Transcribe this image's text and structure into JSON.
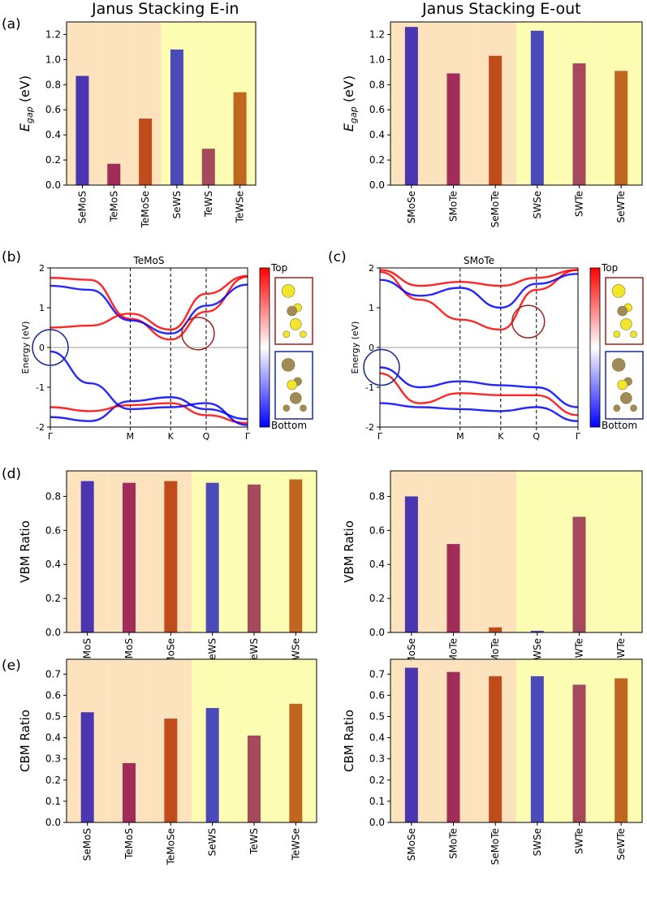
{
  "titles": {
    "left": "Janus Stacking E-in",
    "right": "Janus Stacking E-out"
  },
  "panel_labels": {
    "a": "(a)",
    "b": "(b)",
    "c": "(c)",
    "d": "(d)",
    "e": "(e)"
  },
  "colors": {
    "region1": "#fde3bd",
    "region2": "#fdfcb3",
    "bar_purple": "#4a36b0",
    "bar_crimson": "#a22c59",
    "bar_rust": "#c04b1b",
    "bar_blue": "#4a4ab8",
    "bar_rose": "#a44a5c",
    "bar_orange": "#bf6620",
    "band_top": "#ff0000",
    "band_bottom": "#0000ff",
    "circle_blue": "#1a2a9c",
    "circle_red": "#9c2020"
  },
  "chart_data": [
    {
      "id": "a-left",
      "type": "bar",
      "title": "Janus Stacking E-in",
      "categories": [
        "SeMoS",
        "TeMoS",
        "TeMoSe",
        "SeWS",
        "TeWS",
        "TeWSe"
      ],
      "values": [
        0.87,
        0.17,
        0.53,
        1.08,
        0.29,
        0.74
      ],
      "ylabel": "E_gap (eV)",
      "ylim": [
        0,
        1.3
      ],
      "yticks": [
        "0.0",
        "0.2",
        "0.4",
        "0.6",
        "0.8",
        "1.0",
        "1.2"
      ],
      "colors": [
        "bar_purple",
        "bar_crimson",
        "bar_rust",
        "bar_blue",
        "bar_rose",
        "bar_orange"
      ],
      "shading": [
        "region1",
        "region1",
        "region1",
        "region2",
        "region2",
        "region2"
      ]
    },
    {
      "id": "a-right",
      "type": "bar",
      "title": "Janus Stacking E-out",
      "categories": [
        "SMoSe",
        "SMoTe",
        "SeMoTe",
        "SWSe",
        "SWTe",
        "SeWTe"
      ],
      "values": [
        1.26,
        0.89,
        1.03,
        1.23,
        0.97,
        0.91
      ],
      "ylabel": "E_gap (eV)",
      "ylim": [
        0,
        1.3
      ],
      "yticks": [
        "0.0",
        "0.2",
        "0.4",
        "0.6",
        "0.8",
        "1.0",
        "1.2"
      ],
      "colors": [
        "bar_purple",
        "bar_crimson",
        "bar_rust",
        "bar_blue",
        "bar_rose",
        "bar_orange"
      ],
      "shading": [
        "region1",
        "region1",
        "region1",
        "region2",
        "region2",
        "region2"
      ]
    },
    {
      "id": "b",
      "type": "line",
      "title": "TeMoS",
      "xticklabels": [
        "Γ",
        "M",
        "K",
        "Q",
        "Γ"
      ],
      "ylabel": "Energy (eV)",
      "ylim": [
        -2,
        2
      ],
      "yticks": [
        "-2",
        "-1",
        "0",
        "1",
        "2"
      ],
      "colorbar": {
        "top": "Top",
        "bottom": "Bottom"
      },
      "series": [
        {
          "values": [
            1.75,
            1.7,
            0.72,
            0.2,
            0.9,
            1.78
          ]
        },
        {
          "values": [
            1.55,
            1.45,
            0.68,
            0.35,
            1.05,
            1.58
          ]
        },
        {
          "values": [
            0.5,
            0.55,
            0.85,
            0.45,
            1.35,
            1.8
          ]
        },
        {
          "values": [
            -1.75,
            -1.85,
            -1.35,
            -1.25,
            -1.55,
            -1.8
          ]
        },
        {
          "values": [
            -1.5,
            -1.6,
            -1.45,
            -1.4,
            -1.7,
            -1.9
          ]
        },
        {
          "values": [
            -0.1,
            -0.9,
            -1.55,
            -1.5,
            -1.4,
            -1.95
          ]
        }
      ]
    },
    {
      "id": "c",
      "type": "line",
      "title": "SMoTe",
      "xticklabels": [
        "Γ",
        "M",
        "K",
        "Q",
        "Γ"
      ],
      "ylabel": "Energy (eV)",
      "ylim": [
        -2,
        2
      ],
      "yticks": [
        "-2",
        "-1",
        "0",
        "1",
        "2"
      ],
      "colorbar": {
        "top": "Top",
        "bottom": "Bottom"
      },
      "series": [
        {
          "values": [
            1.9,
            1.2,
            0.7,
            0.45,
            1.45,
            1.95
          ]
        },
        {
          "values": [
            1.7,
            1.3,
            1.5,
            1.0,
            1.6,
            1.85
          ]
        },
        {
          "values": [
            1.95,
            1.55,
            1.65,
            1.55,
            1.75,
            1.95
          ]
        },
        {
          "values": [
            -0.5,
            -1.0,
            -0.85,
            -0.95,
            -1.0,
            -1.5
          ]
        },
        {
          "values": [
            -0.65,
            -1.4,
            -1.15,
            -1.2,
            -1.2,
            -1.7
          ]
        },
        {
          "values": [
            -1.4,
            -1.5,
            -1.55,
            -1.6,
            -1.5,
            -1.85
          ]
        }
      ]
    },
    {
      "id": "d-left",
      "type": "bar",
      "categories": [
        "SeMoS",
        "TeMoS",
        "TeMoSe",
        "SeWS",
        "TeWS",
        "TeWSe"
      ],
      "values": [
        0.89,
        0.88,
        0.89,
        0.88,
        0.87,
        0.9
      ],
      "ylabel": "VBM Ratio",
      "ylim": [
        0,
        0.95
      ],
      "yticks": [
        "0.0",
        "0.2",
        "0.4",
        "0.6",
        "0.8"
      ],
      "colors": [
        "bar_purple",
        "bar_crimson",
        "bar_rust",
        "bar_blue",
        "bar_rose",
        "bar_orange"
      ],
      "shading": [
        "region1",
        "region1",
        "region1",
        "region2",
        "region2",
        "region2"
      ]
    },
    {
      "id": "d-right",
      "type": "bar",
      "categories": [
        "SMoSe",
        "SMoTe",
        "SeMoTe",
        "SWSe",
        "SWTe",
        "SeWTe"
      ],
      "values": [
        0.8,
        0.52,
        0.03,
        0.01,
        0.68,
        0.0
      ],
      "ylabel": "VBM Ratio",
      "ylim": [
        0,
        0.95
      ],
      "yticks": [
        "0.0",
        "0.2",
        "0.4",
        "0.6",
        "0.8"
      ],
      "colors": [
        "bar_purple",
        "bar_crimson",
        "bar_rust",
        "bar_blue",
        "bar_rose",
        "bar_orange"
      ],
      "shading": [
        "region1",
        "region1",
        "region1",
        "region2",
        "region2",
        "region2"
      ]
    },
    {
      "id": "e-left",
      "type": "bar",
      "categories": [
        "SeMoS",
        "TeMoS",
        "TeMoSe",
        "SeWS",
        "TeWS",
        "TeWSe"
      ],
      "values": [
        0.52,
        0.28,
        0.49,
        0.54,
        0.41,
        0.56
      ],
      "ylabel": "CBM Ratio",
      "ylim": [
        0,
        0.77
      ],
      "yticks": [
        "0.0",
        "0.1",
        "0.2",
        "0.3",
        "0.4",
        "0.5",
        "0.6",
        "0.7"
      ],
      "colors": [
        "bar_purple",
        "bar_crimson",
        "bar_rust",
        "bar_blue",
        "bar_rose",
        "bar_orange"
      ],
      "shading": [
        "region1",
        "region1",
        "region1",
        "region2",
        "region2",
        "region2"
      ]
    },
    {
      "id": "e-right",
      "type": "bar",
      "categories": [
        "SMoSe",
        "SMoTe",
        "SeMoTe",
        "SWSe",
        "SWTe",
        "SeWTe"
      ],
      "values": [
        0.73,
        0.71,
        0.69,
        0.69,
        0.65,
        0.68
      ],
      "ylabel": "CBM Ratio",
      "ylim": [
        0,
        0.77
      ],
      "yticks": [
        "0.0",
        "0.1",
        "0.2",
        "0.3",
        "0.4",
        "0.5",
        "0.6",
        "0.7"
      ],
      "colors": [
        "bar_purple",
        "bar_crimson",
        "bar_rust",
        "bar_blue",
        "bar_rose",
        "bar_orange"
      ],
      "shading": [
        "region1",
        "region1",
        "region1",
        "region2",
        "region2",
        "region2"
      ]
    }
  ]
}
